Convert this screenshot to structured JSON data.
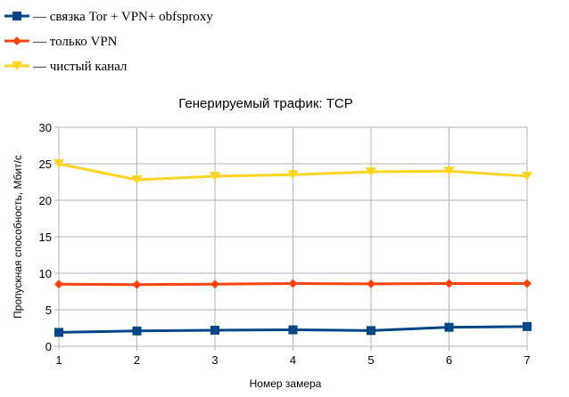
{
  "chart_data": {
    "type": "line",
    "title": "Генерируемый трафик: TCP",
    "xlabel": "Номер замера",
    "ylabel": "Пропускная способность, Мбит/с",
    "x": [
      1,
      2,
      3,
      4,
      5,
      6,
      7
    ],
    "ylim": [
      0,
      30
    ],
    "yticks": [
      0,
      5,
      10,
      15,
      20,
      25,
      30
    ],
    "grid": true,
    "legend_position": "top-left",
    "series": [
      {
        "name": "— связка Tor + VPN+ obfsproxy",
        "color": "#004586",
        "marker": "square",
        "values": [
          1.9,
          2.1,
          2.2,
          2.25,
          2.15,
          2.6,
          2.7
        ]
      },
      {
        "name": "— только VPN",
        "color": "#ff420e",
        "marker": "diamond",
        "values": [
          8.5,
          8.45,
          8.5,
          8.6,
          8.55,
          8.6,
          8.6
        ]
      },
      {
        "name": "— чистый канал",
        "color": "#ffd320",
        "marker": "triangle-down",
        "values": [
          25.0,
          22.8,
          23.3,
          23.5,
          23.9,
          24.0,
          23.3
        ]
      }
    ]
  }
}
